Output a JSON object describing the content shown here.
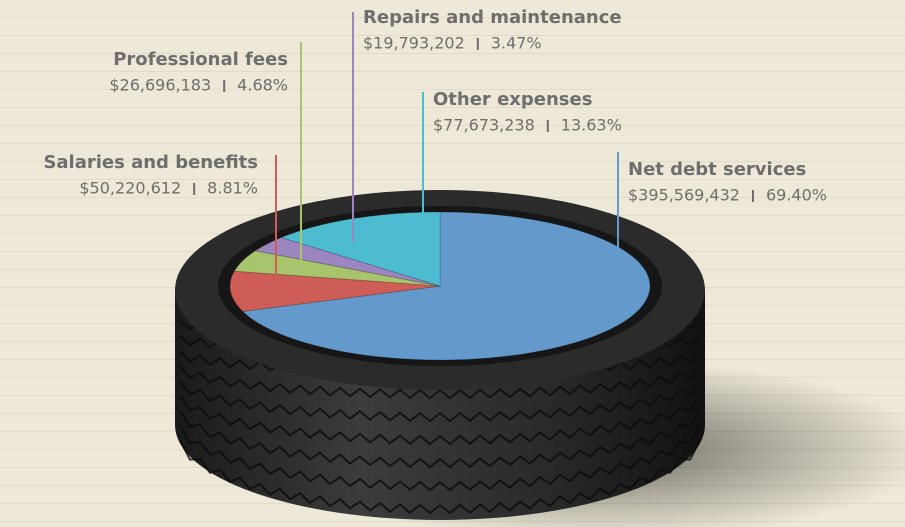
{
  "chart_data": {
    "type": "pie",
    "categories": [
      "Net debt services",
      "Salaries and benefits",
      "Professional fees",
      "Repairs and maintenance",
      "Other expenses"
    ],
    "values": [
      69.4,
      8.81,
      4.68,
      3.47,
      13.63
    ],
    "value_labels": [
      "69.40%",
      "8.81%",
      "4.68%",
      "3.47%",
      "13.63%"
    ],
    "amounts": [
      395569432,
      50220612,
      26696183,
      19793202,
      77673238
    ],
    "amount_labels": [
      "$395,569,432",
      "$50,220,612",
      "$26,696,183",
      "$19,793,202",
      "$77,673,238"
    ],
    "colors": [
      "#6399cb",
      "#cf5d57",
      "#a8c46c",
      "#9b86bf",
      "#4dbcd0"
    ]
  }
}
